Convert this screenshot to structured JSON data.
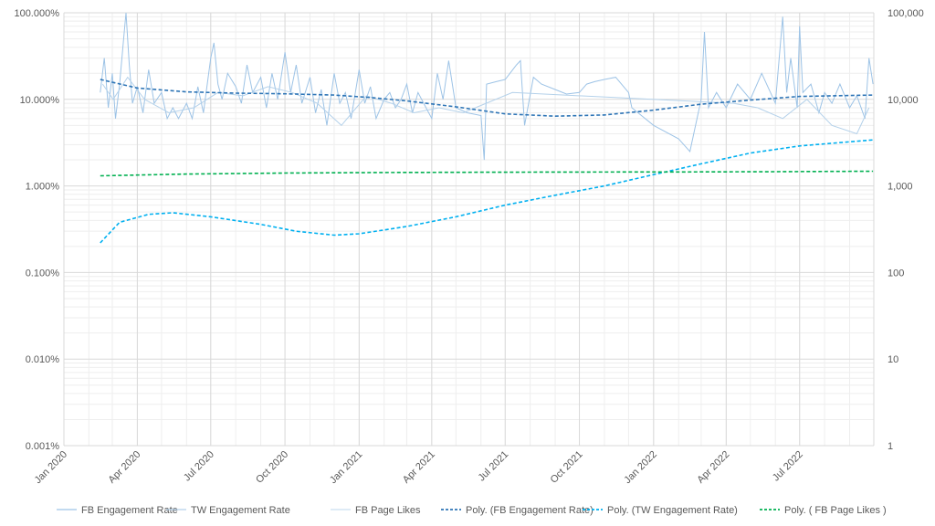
{
  "chart_data": {
    "type": "line",
    "title": "",
    "xlabel": "",
    "ylabel_left": "",
    "ylabel_right": "",
    "y_left": {
      "scale": "log",
      "range": [
        0.001,
        100
      ],
      "ticks": [
        0.001,
        0.01,
        0.1,
        1,
        10,
        100
      ],
      "tick_labels": [
        "0.001%",
        "0.010%",
        "0.100%",
        "1.000%",
        "10.000%",
        "100.000%"
      ]
    },
    "y_right": {
      "scale": "log",
      "range": [
        1,
        100000
      ],
      "ticks": [
        1,
        10,
        100,
        1000,
        10000,
        100000
      ],
      "tick_labels": [
        "1",
        "10",
        "100",
        "1,000",
        "10,000",
        "100,000"
      ]
    },
    "x_axis": {
      "range": [
        "2020-01-01",
        "2022-10-01"
      ],
      "ticks": [
        "2020-01-01",
        "2020-04-01",
        "2020-07-01",
        "2020-10-01",
        "2021-01-01",
        "2021-04-01",
        "2021-07-01",
        "2021-10-01",
        "2022-01-01",
        "2022-04-01",
        "2022-07-01"
      ],
      "tick_labels": [
        "Jan 2020",
        "Apr 2020",
        "Jul 2020",
        "Oct 2020",
        "Jan 2021",
        "Apr 2021",
        "Jul 2021",
        "Oct 2021",
        "Jan 2022",
        "Apr 2022",
        "Jul 2022"
      ]
    },
    "grid": true,
    "legend_position": "bottom",
    "series": [
      {
        "name": "FB Engagement Rate",
        "axis": "left",
        "style": "solid",
        "color": "#9dc3e6",
        "points": [
          [
            "2020-02-15",
            12
          ],
          [
            "2020-02-20",
            30
          ],
          [
            "2020-02-25",
            8
          ],
          [
            "2020-03-01",
            20
          ],
          [
            "2020-03-05",
            6
          ],
          [
            "2020-03-10",
            15
          ],
          [
            "2020-03-15",
            50
          ],
          [
            "2020-03-18",
            100
          ],
          [
            "2020-03-22",
            25
          ],
          [
            "2020-03-26",
            9
          ],
          [
            "2020-04-01",
            14
          ],
          [
            "2020-04-08",
            7
          ],
          [
            "2020-04-15",
            22
          ],
          [
            "2020-04-22",
            9
          ],
          [
            "2020-05-01",
            12
          ],
          [
            "2020-05-08",
            6
          ],
          [
            "2020-05-15",
            8
          ],
          [
            "2020-05-22",
            6
          ],
          [
            "2020-06-01",
            9
          ],
          [
            "2020-06-08",
            6
          ],
          [
            "2020-06-15",
            14
          ],
          [
            "2020-06-22",
            7
          ],
          [
            "2020-07-01",
            30
          ],
          [
            "2020-07-05",
            45
          ],
          [
            "2020-07-10",
            15
          ],
          [
            "2020-07-15",
            10
          ],
          [
            "2020-07-22",
            20
          ],
          [
            "2020-08-01",
            14
          ],
          [
            "2020-08-08",
            9
          ],
          [
            "2020-08-15",
            25
          ],
          [
            "2020-08-22",
            12
          ],
          [
            "2020-09-01",
            18
          ],
          [
            "2020-09-08",
            8
          ],
          [
            "2020-09-15",
            20
          ],
          [
            "2020-09-22",
            10
          ],
          [
            "2020-10-01",
            35
          ],
          [
            "2020-10-08",
            12
          ],
          [
            "2020-10-15",
            25
          ],
          [
            "2020-10-22",
            9
          ],
          [
            "2020-11-01",
            18
          ],
          [
            "2020-11-08",
            7
          ],
          [
            "2020-11-15",
            13
          ],
          [
            "2020-11-22",
            5
          ],
          [
            "2020-12-01",
            20
          ],
          [
            "2020-12-08",
            9
          ],
          [
            "2020-12-15",
            12
          ],
          [
            "2020-12-22",
            6
          ],
          [
            "2021-01-01",
            22
          ],
          [
            "2021-01-08",
            9
          ],
          [
            "2021-01-15",
            14
          ],
          [
            "2021-01-22",
            6
          ],
          [
            "2021-02-01",
            10
          ],
          [
            "2021-02-08",
            12
          ],
          [
            "2021-02-15",
            8
          ],
          [
            "2021-02-22",
            10
          ],
          [
            "2021-03-01",
            15
          ],
          [
            "2021-03-08",
            7
          ],
          [
            "2021-03-15",
            12
          ],
          [
            "2021-03-22",
            9
          ],
          [
            "2021-04-01",
            6
          ],
          [
            "2021-04-08",
            20
          ],
          [
            "2021-04-15",
            10
          ],
          [
            "2021-04-22",
            28
          ],
          [
            "2021-05-01",
            8
          ],
          [
            "2021-05-15",
            7
          ],
          [
            "2021-06-01",
            6.5
          ],
          [
            "2021-06-05",
            2.0
          ],
          [
            "2021-06-08",
            15
          ],
          [
            "2021-06-20",
            16
          ],
          [
            "2021-07-01",
            17
          ],
          [
            "2021-07-15",
            25
          ],
          [
            "2021-07-20",
            28
          ],
          [
            "2021-07-25",
            5
          ],
          [
            "2021-08-05",
            18
          ],
          [
            "2021-08-15",
            15
          ],
          [
            "2021-09-01",
            13
          ],
          [
            "2021-09-15",
            11.5
          ],
          [
            "2021-10-01",
            12
          ],
          [
            "2021-10-10",
            15
          ],
          [
            "2021-10-20",
            16
          ],
          [
            "2021-11-01",
            17
          ],
          [
            "2021-11-15",
            18
          ],
          [
            "2021-12-01",
            12
          ],
          [
            "2021-12-05",
            8
          ],
          [
            "2022-01-01",
            5
          ],
          [
            "2022-02-01",
            3.5
          ],
          [
            "2022-02-15",
            2.5
          ],
          [
            "2022-03-01",
            10
          ],
          [
            "2022-03-05",
            60
          ],
          [
            "2022-03-10",
            8
          ],
          [
            "2022-03-20",
            12
          ],
          [
            "2022-04-01",
            8
          ],
          [
            "2022-04-15",
            15
          ],
          [
            "2022-05-01",
            10
          ],
          [
            "2022-05-15",
            20
          ],
          [
            "2022-06-01",
            9
          ],
          [
            "2022-06-10",
            90
          ],
          [
            "2022-06-15",
            12
          ],
          [
            "2022-06-20",
            30
          ],
          [
            "2022-06-28",
            8
          ],
          [
            "2022-07-01",
            70
          ],
          [
            "2022-07-05",
            12
          ],
          [
            "2022-07-15",
            15
          ],
          [
            "2022-07-25",
            7
          ],
          [
            "2022-08-01",
            12
          ],
          [
            "2022-08-10",
            9
          ],
          [
            "2022-08-20",
            15
          ],
          [
            "2022-09-01",
            8
          ],
          [
            "2022-09-10",
            11
          ],
          [
            "2022-09-20",
            6
          ],
          [
            "2022-09-25",
            30
          ],
          [
            "2022-09-30",
            15
          ]
        ]
      },
      {
        "name": "TW Engagement Rate",
        "axis": "left",
        "style": "solid",
        "color": "#b4d1ea",
        "points": [
          [
            "2020-02-18",
            15
          ],
          [
            "2020-03-02",
            10
          ],
          [
            "2020-03-20",
            18
          ],
          [
            "2020-04-10",
            10
          ],
          [
            "2020-05-10",
            7
          ],
          [
            "2020-06-10",
            8
          ],
          [
            "2020-07-10",
            12
          ],
          [
            "2020-08-10",
            11
          ],
          [
            "2020-09-10",
            14
          ],
          [
            "2020-10-10",
            12
          ],
          [
            "2020-11-10",
            9
          ],
          [
            "2020-12-10",
            5
          ],
          [
            "2021-01-10",
            11
          ],
          [
            "2021-02-10",
            9
          ],
          [
            "2021-03-10",
            7
          ],
          [
            "2021-04-10",
            8
          ],
          [
            "2021-05-10",
            7
          ],
          [
            "2021-07-10",
            12
          ],
          [
            "2022-04-10",
            9
          ],
          [
            "2022-05-10",
            8
          ],
          [
            "2022-06-10",
            6
          ],
          [
            "2022-07-10",
            10
          ],
          [
            "2022-08-10",
            5
          ],
          [
            "2022-09-10",
            4
          ],
          [
            "2022-09-25",
            8
          ]
        ]
      },
      {
        "name": "FB Page Likes",
        "axis": "right",
        "style": "solid",
        "color": "#c9dff0",
        "points": []
      },
      {
        "name": "Poly. (FB Engagement Rate)",
        "axis": "left",
        "style": "dashed",
        "color": "#2e75b6",
        "points": [
          [
            "2020-02-15",
            17
          ],
          [
            "2020-04-01",
            13.5
          ],
          [
            "2020-06-01",
            12.2
          ],
          [
            "2020-08-01",
            11.8
          ],
          [
            "2020-10-01",
            11.6
          ],
          [
            "2020-12-01",
            11.2
          ],
          [
            "2021-01-15",
            10.5
          ],
          [
            "2021-03-01",
            9.6
          ],
          [
            "2021-05-01",
            8.2
          ],
          [
            "2021-07-01",
            6.8
          ],
          [
            "2021-09-01",
            6.4
          ],
          [
            "2021-11-01",
            6.6
          ],
          [
            "2022-01-01",
            7.5
          ],
          [
            "2022-03-01",
            8.8
          ],
          [
            "2022-05-01",
            9.8
          ],
          [
            "2022-07-01",
            10.8
          ],
          [
            "2022-09-30",
            11.2
          ]
        ]
      },
      {
        "name": "Poly. (TW Engagement Rate)",
        "axis": "left",
        "style": "dashed",
        "color": "#00b0f0",
        "points": [
          [
            "2020-02-15",
            0.22
          ],
          [
            "2020-03-10",
            0.38
          ],
          [
            "2020-04-15",
            0.47
          ],
          [
            "2020-05-15",
            0.49
          ],
          [
            "2020-07-01",
            0.44
          ],
          [
            "2020-09-01",
            0.36
          ],
          [
            "2020-10-15",
            0.3
          ],
          [
            "2020-12-01",
            0.27
          ],
          [
            "2021-01-01",
            0.28
          ],
          [
            "2021-03-01",
            0.34
          ],
          [
            "2021-05-01",
            0.44
          ],
          [
            "2021-07-01",
            0.6
          ],
          [
            "2021-09-01",
            0.78
          ],
          [
            "2021-11-01",
            1.0
          ],
          [
            "2022-01-01",
            1.35
          ],
          [
            "2022-03-01",
            1.8
          ],
          [
            "2022-05-01",
            2.4
          ],
          [
            "2022-07-01",
            2.9
          ],
          [
            "2022-09-30",
            3.4
          ]
        ]
      },
      {
        "name": "Poly. ( FB Page Likes )",
        "axis": "right",
        "style": "dashed",
        "color": "#00b050",
        "points": [
          [
            "2020-02-15",
            1310
          ],
          [
            "2020-06-01",
            1370
          ],
          [
            "2020-10-01",
            1410
          ],
          [
            "2021-02-01",
            1430
          ],
          [
            "2021-06-01",
            1440
          ],
          [
            "2021-10-01",
            1445
          ],
          [
            "2022-02-01",
            1450
          ],
          [
            "2022-06-01",
            1460
          ],
          [
            "2022-09-30",
            1480
          ]
        ]
      }
    ]
  }
}
